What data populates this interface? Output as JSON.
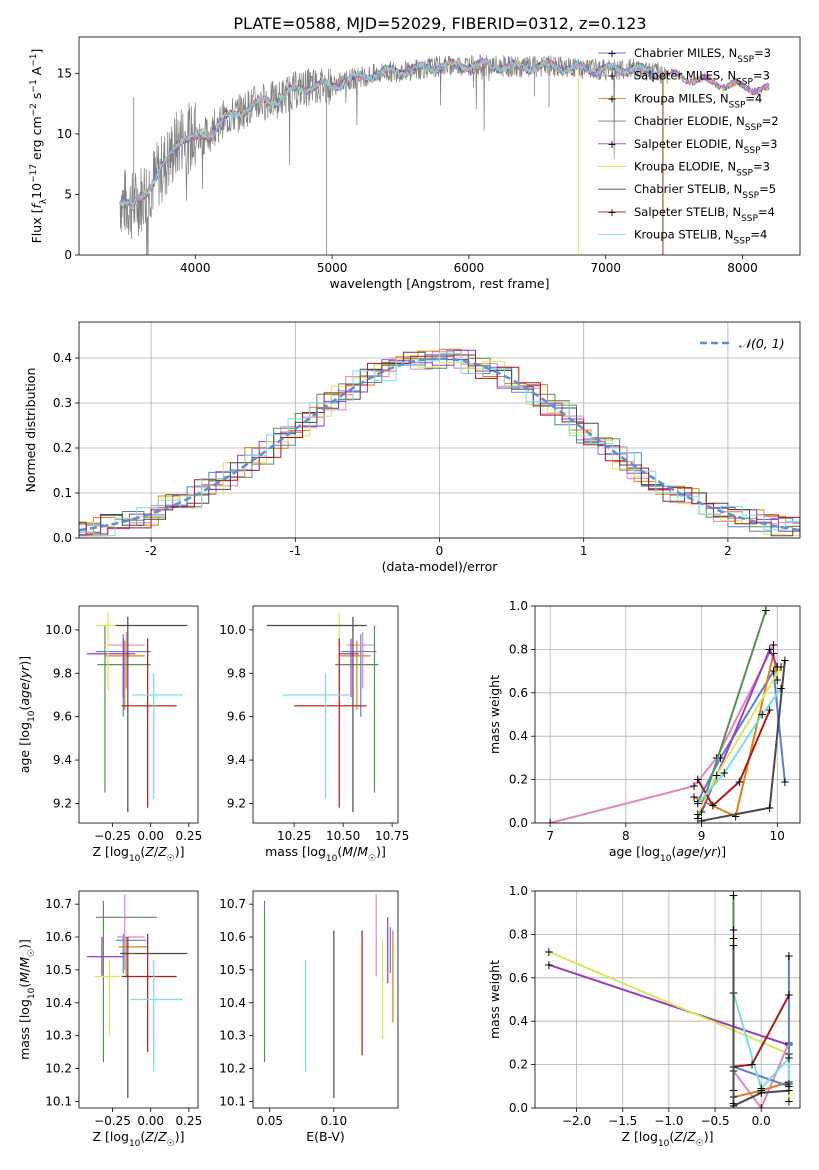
{
  "page": {
    "suptitle": "PLATE=0588, MJD=52029, FIBERID=0312, z=0.123"
  },
  "colors": {
    "Chabrier MILES": "#5b7fd6",
    "Salpeter MILES": "#e383c1",
    "Kroupa MILES": "#df7f1a",
    "Chabrier ELODIE": "#5a8f5a",
    "Salpeter ELODIE": "#9b3dbf",
    "Kroupa ELODIE": "#d9e85a",
    "Chabrier STELIB": "#4a4a4a",
    "Salpeter STELIB": "#b01818",
    "Kroupa STELIB": "#7fdde0"
  },
  "chart_data": [
    {
      "id": "spectrum",
      "type": "line",
      "xlabel": "wavelength [Angstrom, rest frame]",
      "ylabel": "Flux [f_λ10^-17 erg cm^-2 s^-1 A^-1]",
      "xlim": [
        3150,
        8420
      ],
      "ylim": [
        0,
        18
      ],
      "xticks": [
        4000,
        5000,
        6000,
        7000,
        8000
      ],
      "yticks": [
        0,
        5,
        10,
        15
      ],
      "grid": false,
      "legend_position": "right",
      "legend": [
        {
          "name": "Chabrier MILES",
          "nssp": "3"
        },
        {
          "name": "Salpeter MILES",
          "nssp": "3"
        },
        {
          "name": "Kroupa MILES",
          "nssp": "4"
        },
        {
          "name": "Chabrier ELODIE",
          "nssp": "2"
        },
        {
          "name": "Salpeter ELODIE",
          "nssp": "3"
        },
        {
          "name": "Kroupa ELODIE",
          "nssp": "3"
        },
        {
          "name": "Chabrier STELIB",
          "nssp": "5"
        },
        {
          "name": "Salpeter STELIB",
          "nssp": "4"
        },
        {
          "name": "Kroupa STELIB",
          "nssp": "4"
        }
      ],
      "continuum": {
        "x": [
          3450,
          3550,
          3700,
          3800,
          3900,
          4000,
          4100,
          4200,
          4300,
          4400,
          4500,
          4600,
          4700,
          4800,
          4900,
          5000,
          5200,
          5400,
          5600,
          5800,
          6000,
          6200,
          6400,
          6600,
          6800,
          7000,
          7200,
          7400,
          7600,
          7800,
          8000,
          8200
        ],
        "y": [
          4.5,
          4.0,
          6.2,
          7.8,
          9.8,
          9.5,
          10.0,
          11.2,
          11.6,
          12.3,
          12.7,
          12.8,
          13.5,
          13.8,
          14.0,
          14.0,
          14.7,
          15.1,
          15.3,
          15.6,
          15.7,
          15.6,
          15.5,
          15.6,
          15.4,
          15.3,
          15.4,
          15.0,
          14.6,
          14.2,
          13.9,
          13.6
        ]
      }
    },
    {
      "id": "residuals",
      "type": "step",
      "xlabel": "(data-model)/error",
      "ylabel": "Normed distribution",
      "xlim": [
        -2.5,
        2.5
      ],
      "ylim": [
        0,
        0.48
      ],
      "xticks": [
        -2,
        -1,
        0,
        1,
        2
      ],
      "yticks": [
        0.0,
        0.1,
        0.2,
        0.3,
        0.4
      ],
      "grid": true,
      "legend": "𝒩(0, 1)",
      "legend_position": "top-right",
      "gaussian_color": "#5b8fd6"
    },
    {
      "id": "age_vs_Z",
      "type": "errorbar",
      "xlabel": "Z [log10(Z/Z☉)]",
      "ylabel": "age  [log10(age/yr)]",
      "xlim": [
        -0.47,
        0.31
      ],
      "ylim": [
        9.11,
        10.11
      ],
      "xticks": [
        -0.25,
        0.0,
        0.25
      ],
      "xticklabels": [
        "−0.25",
        "0.00",
        "0.25"
      ],
      "yticks": [
        9.2,
        9.4,
        9.6,
        9.8,
        10.0
      ],
      "points": [
        {
          "model": "Chabrier MILES",
          "x": -0.18,
          "xerr": [
            0.18,
            0.18
          ],
          "y": 9.9,
          "yerr": [
            0.3,
            0.08
          ]
        },
        {
          "model": "Salpeter MILES",
          "x": -0.16,
          "xerr": [
            0.12,
            0.12
          ],
          "y": 9.93,
          "yerr": [
            0.2,
            0.06
          ]
        },
        {
          "model": "Kroupa MILES",
          "x": -0.17,
          "xerr": [
            0.13,
            0.13
          ],
          "y": 9.88,
          "yerr": [
            0.25,
            0.07
          ]
        },
        {
          "model": "Chabrier ELODIE",
          "x": -0.3,
          "xerr": [
            0.05,
            0.3
          ],
          "y": 9.84,
          "yerr": [
            0.59,
            0.18
          ]
        },
        {
          "model": "Salpeter ELODIE",
          "x": -0.18,
          "xerr": [
            0.24,
            0.08
          ],
          "y": 9.89,
          "yerr": [
            0.2,
            0.07
          ]
        },
        {
          "model": "Kroupa ELODIE",
          "x": -0.28,
          "xerr": [
            0.08,
            0.06
          ],
          "y": 10.02,
          "yerr": [
            0.3,
            0.06
          ]
        },
        {
          "model": "Chabrier STELIB",
          "x": -0.15,
          "xerr": [
            0.08,
            0.39
          ],
          "y": 10.02,
          "yerr": [
            0.86,
            0.04
          ]
        },
        {
          "model": "Salpeter STELIB",
          "x": -0.02,
          "xerr": [
            0.17,
            0.19
          ],
          "y": 9.65,
          "yerr": [
            0.47,
            0.31
          ]
        },
        {
          "model": "Kroupa STELIB",
          "x": 0.02,
          "xerr": [
            0.14,
            0.19
          ],
          "y": 9.7,
          "yerr": [
            0.48,
            0.1
          ]
        }
      ]
    },
    {
      "id": "age_vs_mass",
      "type": "errorbar",
      "xlabel": "mass [log10(M/M☉)]",
      "ylabel": "",
      "xlim": [
        10.04,
        10.78
      ],
      "ylim": [
        9.11,
        10.11
      ],
      "xticks": [
        10.25,
        10.5,
        10.75
      ],
      "xticklabels": [
        "10.25",
        "10.50",
        "10.75"
      ],
      "yticks": [
        9.2,
        9.4,
        9.6,
        9.8,
        10.0
      ],
      "points": [
        {
          "model": "Chabrier MILES",
          "x": 10.59,
          "xerr": [
            0.1,
            0.08
          ],
          "y": 9.9,
          "yerr": [
            0.3,
            0.08
          ]
        },
        {
          "model": "Salpeter MILES",
          "x": 10.6,
          "xerr": [
            0.08,
            0.06
          ],
          "y": 9.93,
          "yerr": [
            0.2,
            0.06
          ]
        },
        {
          "model": "Kroupa MILES",
          "x": 10.57,
          "xerr": [
            0.09,
            0.07
          ],
          "y": 9.88,
          "yerr": [
            0.25,
            0.07
          ]
        },
        {
          "model": "Chabrier ELODIE",
          "x": 10.66,
          "xerr": [
            0.2,
            0.02
          ],
          "y": 9.84,
          "yerr": [
            0.59,
            0.18
          ]
        },
        {
          "model": "Salpeter ELODIE",
          "x": 10.54,
          "xerr": [
            0.06,
            0.04
          ],
          "y": 9.89,
          "yerr": [
            0.2,
            0.07
          ]
        },
        {
          "model": "Kroupa ELODIE",
          "x": 10.48,
          "xerr": [
            0.05,
            0.04
          ],
          "y": 10.02,
          "yerr": [
            0.3,
            0.06
          ]
        },
        {
          "model": "Chabrier STELIB",
          "x": 10.55,
          "xerr": [
            0.44,
            0.07
          ],
          "y": 10.02,
          "yerr": [
            0.86,
            0.04
          ]
        },
        {
          "model": "Salpeter STELIB",
          "x": 10.48,
          "xerr": [
            0.23,
            0.14
          ],
          "y": 9.65,
          "yerr": [
            0.47,
            0.31
          ]
        },
        {
          "model": "Kroupa STELIB",
          "x": 10.41,
          "xerr": [
            0.22,
            0.12
          ],
          "y": 9.7,
          "yerr": [
            0.48,
            0.1
          ]
        }
      ]
    },
    {
      "id": "weight_vs_age",
      "type": "line",
      "xlabel": "age  [log10(age/yr)]",
      "ylabel": "mass weight",
      "xlim": [
        6.8,
        10.3
      ],
      "ylim": [
        0,
        1.0
      ],
      "xticks": [
        7,
        8,
        9,
        10
      ],
      "yticks": [
        0.0,
        0.2,
        0.4,
        0.6,
        0.8,
        1.0
      ],
      "grid": true,
      "series": [
        {
          "model": "Salpeter MILES",
          "x": [
            7.0,
            8.9,
            9.2,
            9.95
          ],
          "y": [
            0.0,
            0.17,
            0.3,
            0.82
          ]
        },
        {
          "model": "Chabrier MILES",
          "x": [
            8.95,
            9.25,
            9.95,
            10.1
          ],
          "y": [
            0.1,
            0.3,
            0.7,
            0.19
          ]
        },
        {
          "model": "Kroupa MILES",
          "x": [
            8.9,
            9.45,
            9.95,
            10.0
          ],
          "y": [
            0.12,
            0.03,
            0.78,
            0.66
          ]
        },
        {
          "model": "Chabrier ELODIE",
          "x": [
            8.95,
            9.85
          ],
          "y": [
            0.02,
            0.98
          ]
        },
        {
          "model": "Salpeter ELODIE",
          "x": [
            9.0,
            9.9,
            10.0
          ],
          "y": [
            0.05,
            0.8,
            0.72
          ]
        },
        {
          "model": "Kroupa ELODIE",
          "x": [
            8.95,
            9.2,
            10.05
          ],
          "y": [
            0.04,
            0.22,
            0.72
          ]
        },
        {
          "model": "Chabrier STELIB",
          "x": [
            9.0,
            9.9,
            10.1
          ],
          "y": [
            0.01,
            0.07,
            0.75
          ]
        },
        {
          "model": "Salpeter STELIB",
          "x": [
            8.95,
            9.15,
            9.5,
            9.9
          ],
          "y": [
            0.2,
            0.08,
            0.19,
            0.52
          ]
        },
        {
          "model": "Kroupa STELIB",
          "x": [
            8.95,
            9.3,
            9.8,
            10.05
          ],
          "y": [
            0.09,
            0.23,
            0.5,
            0.62
          ]
        }
      ]
    },
    {
      "id": "mass_vs_Z",
      "type": "errorbar",
      "xlabel": "Z [log10(Z/Z☉)]",
      "ylabel": "mass [log10(M/M☉)]",
      "xlim": [
        -0.47,
        0.31
      ],
      "ylim": [
        10.08,
        10.74
      ],
      "xticks": [
        -0.25,
        0.0,
        0.25
      ],
      "xticklabels": [
        "−0.25",
        "0.00",
        "0.25"
      ],
      "yticks": [
        10.1,
        10.2,
        10.3,
        10.4,
        10.5,
        10.6,
        10.7
      ],
      "points": [
        {
          "model": "Chabrier MILES",
          "x": -0.18,
          "xerr": [
            0.05,
            0.15
          ],
          "y": 10.59,
          "yerr": [
            0.1,
            0.02
          ]
        },
        {
          "model": "Salpeter MILES",
          "x": -0.17,
          "xerr": [
            0.05,
            0.13
          ],
          "y": 10.6,
          "yerr": [
            0.1,
            0.13
          ]
        },
        {
          "model": "Kroupa MILES",
          "x": -0.16,
          "xerr": [
            0.05,
            0.14
          ],
          "y": 10.57,
          "yerr": [
            0.09,
            0.03
          ]
        },
        {
          "model": "Chabrier ELODIE",
          "x": -0.31,
          "xerr": [
            0.05,
            0.35
          ],
          "y": 10.66,
          "yerr": [
            0.44,
            0.05
          ]
        },
        {
          "model": "Salpeter ELODIE",
          "x": -0.32,
          "xerr": [
            0.1,
            0.14
          ],
          "y": 10.54,
          "yerr": [
            0.06,
            0.06
          ]
        },
        {
          "model": "Kroupa ELODIE",
          "x": -0.27,
          "xerr": [
            0.1,
            0.07
          ],
          "y": 10.48,
          "yerr": [
            0.18,
            0.05
          ]
        },
        {
          "model": "Chabrier STELIB",
          "x": -0.15,
          "xerr": [
            0.05,
            0.39
          ],
          "y": 10.55,
          "yerr": [
            0.44,
            0.05
          ]
        },
        {
          "model": "Salpeter STELIB",
          "x": -0.02,
          "xerr": [
            0.17,
            0.19
          ],
          "y": 10.48,
          "yerr": [
            0.23,
            0.13
          ]
        },
        {
          "model": "Kroupa STELIB",
          "x": 0.02,
          "xerr": [
            0.15,
            0.19
          ],
          "y": 10.41,
          "yerr": [
            0.22,
            0.12
          ]
        }
      ]
    },
    {
      "id": "mass_vs_ebv",
      "type": "errorbar",
      "xlabel": "E(B-V)",
      "ylabel": "",
      "xlim": [
        0.037,
        0.15
      ],
      "ylim": [
        10.08,
        10.74
      ],
      "xticks": [
        0.05,
        0.1
      ],
      "xticklabels": [
        "0.05",
        "0.10"
      ],
      "yticks": [
        10.1,
        10.2,
        10.3,
        10.4,
        10.5,
        10.6,
        10.7
      ],
      "points": [
        {
          "model": "Chabrier ELODIE",
          "x": 0.046,
          "y": 10.46,
          "yerr": [
            0.24,
            0.25
          ]
        },
        {
          "model": "Kroupa STELIB",
          "x": 0.078,
          "y": 10.36,
          "yerr": [
            0.17,
            0.17
          ]
        },
        {
          "model": "Chabrier STELIB",
          "x": 0.1,
          "y": 10.44,
          "yerr": [
            0.33,
            0.18
          ]
        },
        {
          "model": "Salpeter STELIB",
          "x": 0.122,
          "y": 10.47,
          "yerr": [
            0.23,
            0.15
          ]
        },
        {
          "model": "Salpeter MILES",
          "x": 0.133,
          "y": 10.57,
          "yerr": [
            0.09,
            0.16
          ]
        },
        {
          "model": "Kroupa ELODIE",
          "x": 0.138,
          "y": 10.47,
          "yerr": [
            0.18,
            0.12
          ]
        },
        {
          "model": "Salpeter ELODIE",
          "x": 0.142,
          "y": 10.54,
          "yerr": [
            0.08,
            0.12
          ]
        },
        {
          "model": "Chabrier MILES",
          "x": 0.144,
          "y": 10.55,
          "yerr": [
            0.06,
            0.08
          ]
        },
        {
          "model": "Kroupa MILES",
          "x": 0.146,
          "y": 10.48,
          "yerr": [
            0.14,
            0.14
          ]
        }
      ]
    },
    {
      "id": "weight_vs_Z",
      "type": "line",
      "xlabel": "Z [log10(Z/Z☉)]",
      "ylabel": "mass weight",
      "xlim": [
        -2.45,
        0.42
      ],
      "ylim": [
        0,
        1.0
      ],
      "xticks": [
        -2.0,
        -1.5,
        -1.0,
        -0.5,
        0.0
      ],
      "xticklabels": [
        "−2.0",
        "−1.5",
        "−1.0",
        "−0.5",
        "0.0"
      ],
      "yticks": [
        0.0,
        0.2,
        0.4,
        0.6,
        0.8,
        1.0
      ],
      "grid": true,
      "series": [
        {
          "model": "Salpeter ELODIE",
          "x": [
            -2.3,
            0.3
          ],
          "y": [
            0.66,
            0.29
          ]
        },
        {
          "model": "Kroupa ELODIE",
          "x": [
            -2.3,
            0.3,
            0.3
          ],
          "y": [
            0.72,
            0.25,
            0.03
          ]
        },
        {
          "model": "Chabrier ELODIE",
          "x": [
            -0.3,
            -0.3
          ],
          "y": [
            0.98,
            0.02
          ]
        },
        {
          "model": "Salpeter MILES",
          "x": [
            -0.3,
            -0.3,
            0.0,
            0.3
          ],
          "y": [
            0.82,
            0.17,
            0.0,
            0.3
          ]
        },
        {
          "model": "Kroupa MILES",
          "x": [
            -0.3,
            -0.3,
            0.0,
            0.3
          ],
          "y": [
            0.78,
            0.05,
            0.08,
            0.12
          ]
        },
        {
          "model": "Chabrier MILES",
          "x": [
            -0.3,
            0.3,
            0.3
          ],
          "y": [
            0.19,
            0.1,
            0.7
          ]
        },
        {
          "model": "Kroupa STELIB",
          "x": [
            -0.3,
            0.0,
            0.3,
            0.3
          ],
          "y": [
            0.53,
            0.09,
            0.23,
            0.11
          ]
        },
        {
          "model": "Salpeter STELIB",
          "x": [
            -0.3,
            -0.3,
            -0.1,
            0.3
          ],
          "y": [
            0.08,
            0.19,
            0.2,
            0.52
          ]
        },
        {
          "model": "Chabrier STELIB",
          "x": [
            -0.3,
            -0.3,
            0.0,
            0.3
          ],
          "y": [
            0.75,
            0.01,
            0.07,
            0.08
          ]
        }
      ]
    }
  ]
}
